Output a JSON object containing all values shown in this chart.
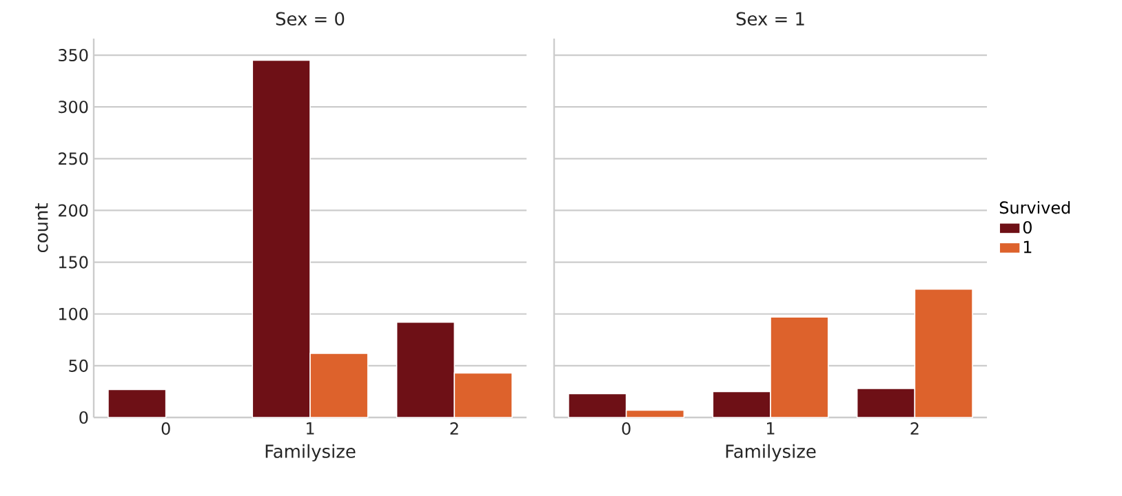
{
  "chart_data": [
    {
      "type": "bar",
      "title": "Sex = 0",
      "xlabel": "Familysize",
      "ylabel": "count",
      "categories": [
        "0",
        "1",
        "2"
      ],
      "series": [
        {
          "color": "#6e1016",
          "values": [
            27,
            345,
            92
          ]
        },
        {
          "color": "#dd622c",
          "values": [
            null,
            62,
            43
          ]
        }
      ],
      "ylim": [
        0,
        366
      ],
      "yticks": [
        0,
        50,
        100,
        150,
        200,
        250,
        300,
        350
      ],
      "grid": "y"
    },
    {
      "type": "bar",
      "title": "Sex = 1",
      "xlabel": "Familysize",
      "categories": [
        "0",
        "1",
        "2"
      ],
      "series": [
        {
          "name": "0",
          "color": "#6e1016",
          "values": [
            23,
            25,
            28
          ]
        },
        {
          "name": "1",
          "color": "#dd622c",
          "values": [
            7,
            97,
            124
          ]
        }
      ],
      "ylim": [
        0,
        366
      ],
      "yticks": [
        0,
        50,
        100,
        150,
        200,
        250,
        300,
        350
      ],
      "grid": "y",
      "tick_labels": "x",
      "legend": "right",
      "legend_title": "Survived"
    }
  ]
}
